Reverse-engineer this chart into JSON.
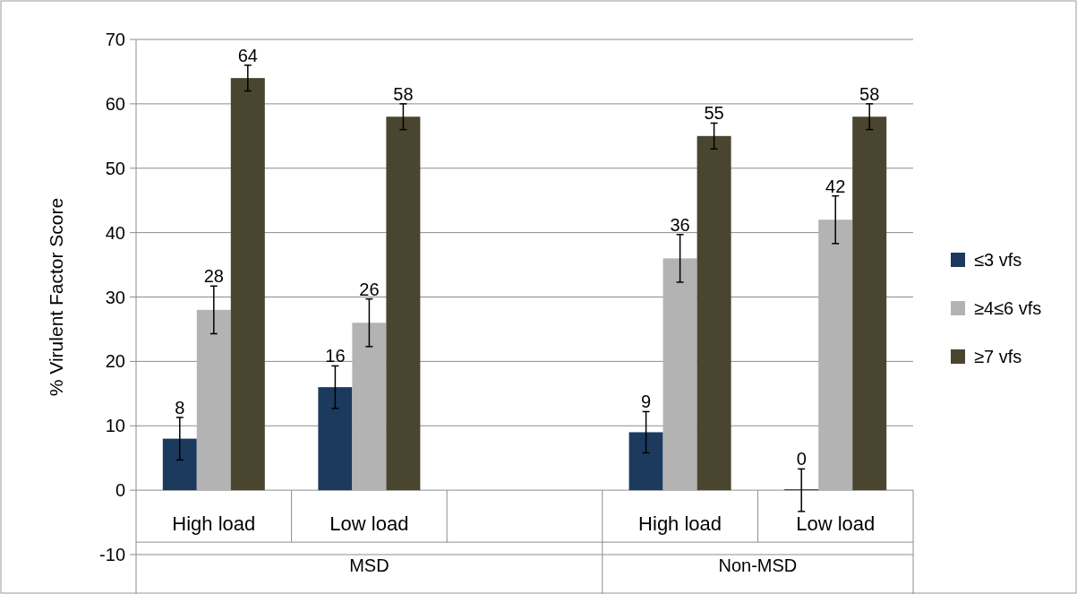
{
  "chart_data": {
    "type": "bar",
    "ylabel": "% Virulent Factor Score",
    "categories": [
      "High load",
      "Low load",
      null,
      "High load",
      "Low load"
    ],
    "series": [
      {
        "name": "≤3 vfs",
        "color": "#1b3a5e",
        "values": [
          8,
          16,
          null,
          9,
          0
        ],
        "errors": [
          3.3,
          3.3,
          null,
          3.2,
          3.3
        ]
      },
      {
        "name": "≥4≤6 vfs",
        "color": "#b3b3b3",
        "values": [
          28,
          26,
          null,
          36,
          42
        ],
        "errors": [
          3.7,
          3.7,
          null,
          3.7,
          3.7
        ]
      },
      {
        "name": "≥7 vfs",
        "color": "#4a452e",
        "values": [
          64,
          58,
          null,
          55,
          58
        ],
        "errors": [
          2,
          2,
          null,
          2,
          2
        ]
      }
    ],
    "ylim": [
      -10,
      70
    ],
    "yticks": [
      -10,
      0,
      10,
      20,
      30,
      40,
      50,
      60,
      70
    ],
    "grid": "y",
    "legend": "right",
    "data_labels": true,
    "annotations": [
      "MSD",
      "Non-MSD"
    ]
  }
}
